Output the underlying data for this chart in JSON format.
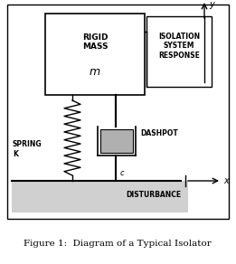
{
  "title": "Figure 1:  Diagram of a Typical Isolator",
  "bg_color": "#ffffff",
  "fig_width": 2.61,
  "fig_height": 2.92,
  "dpi": 100,
  "rigid_mass_label": "RIGID\nMASS",
  "mass_symbol": "m",
  "spring_label": "SPRING\nK",
  "dashpot_label": "DASHPOT",
  "disturbance_label": "DISTURBANCE",
  "isolation_label": "ISOLATION\nSYSTEM\nRESPONSE",
  "y_label": "y",
  "x_label": "x",
  "c_label": "c",
  "ground_color": "#d0d0d0",
  "dashpot_color": "#b0b0b0",
  "black": "#000000"
}
